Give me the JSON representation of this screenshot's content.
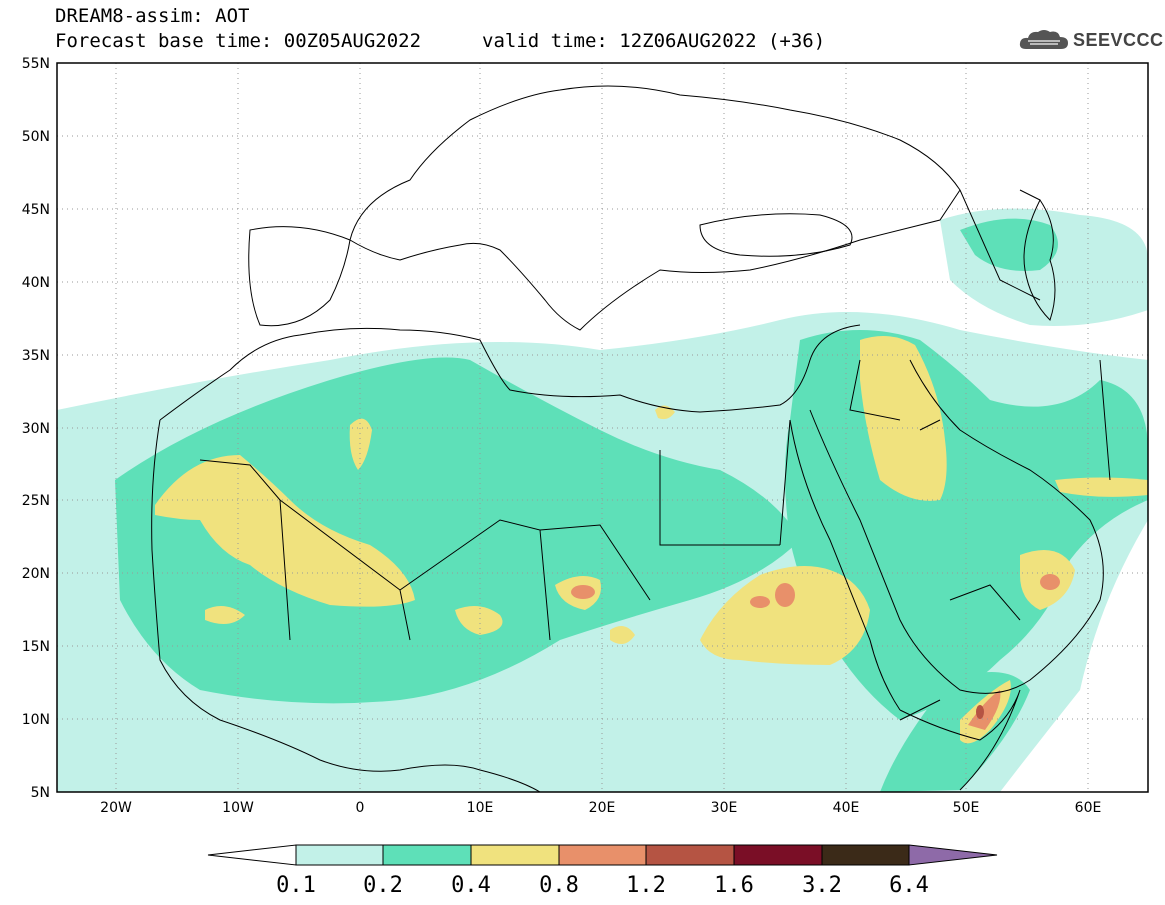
{
  "header": {
    "title_line1": "DREAM8-assim: AOT",
    "title_line2": "Forecast base time: 00Z05AUG2022",
    "valid_time": "valid time: 12Z06AUG2022 (+36)",
    "logo_text": "SEEVCCC",
    "logo_icon": "cloud-icon"
  },
  "map": {
    "variable": "AOT",
    "lon_range": [
      -25,
      65
    ],
    "lat_range": [
      5,
      55
    ],
    "lat_labels": [
      "55N",
      "50N",
      "45N",
      "40N",
      "35N",
      "30N",
      "25N",
      "20N",
      "15N",
      "10N",
      "5N"
    ],
    "lon_labels": [
      "20W",
      "10W",
      "0",
      "10E",
      "20E",
      "30E",
      "40E",
      "50E",
      "60E"
    ],
    "grid": "dotted"
  },
  "colorbar": {
    "levels": [
      "0.1",
      "0.2",
      "0.4",
      "0.8",
      "1.2",
      "1.6",
      "3.2",
      "6.4"
    ],
    "colors": [
      "#c2f1e8",
      "#5ee0b8",
      "#f0e27e",
      "#e8906a",
      "#b55443",
      "#7a0e26",
      "#3b2a18",
      "#8e6aa8"
    ],
    "under_color": "#ffffff"
  }
}
